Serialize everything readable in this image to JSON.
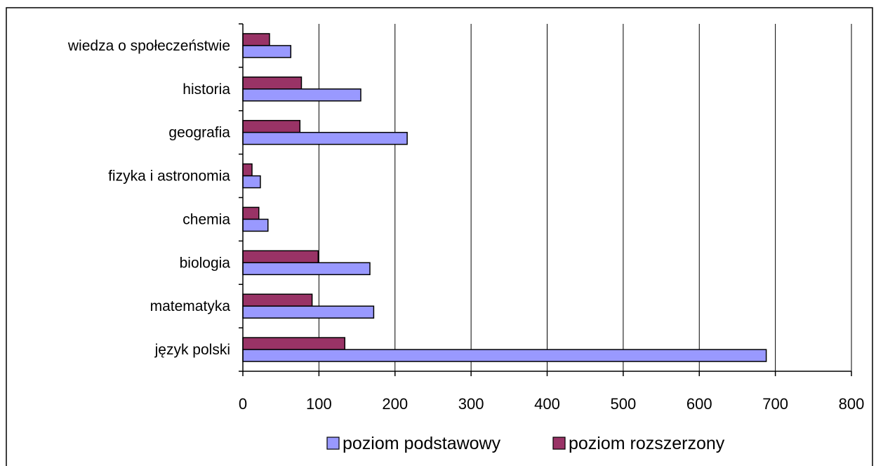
{
  "chart_data": {
    "type": "bar",
    "orientation": "horizontal",
    "categories": [
      "język polski",
      "matematyka",
      "biologia",
      "chemia",
      "fizyka i astronomia",
      "geografia",
      "historia",
      "wiedza o społeczeństwie"
    ],
    "series": [
      {
        "name": "poziom podstawowy",
        "color": "#9999ff",
        "values": [
          688,
          172,
          167,
          33,
          23,
          216,
          155,
          63
        ]
      },
      {
        "name": "poziom rozszerzony",
        "color": "#993366",
        "values": [
          134,
          91,
          99,
          21,
          12,
          75,
          77,
          35
        ]
      }
    ],
    "xlim": [
      0,
      800
    ],
    "xticks": [
      0,
      100,
      200,
      300,
      400,
      500,
      600,
      700,
      800
    ],
    "grid": "vertical",
    "legend_position": "bottom",
    "title": "",
    "xlabel": "",
    "ylabel": ""
  }
}
